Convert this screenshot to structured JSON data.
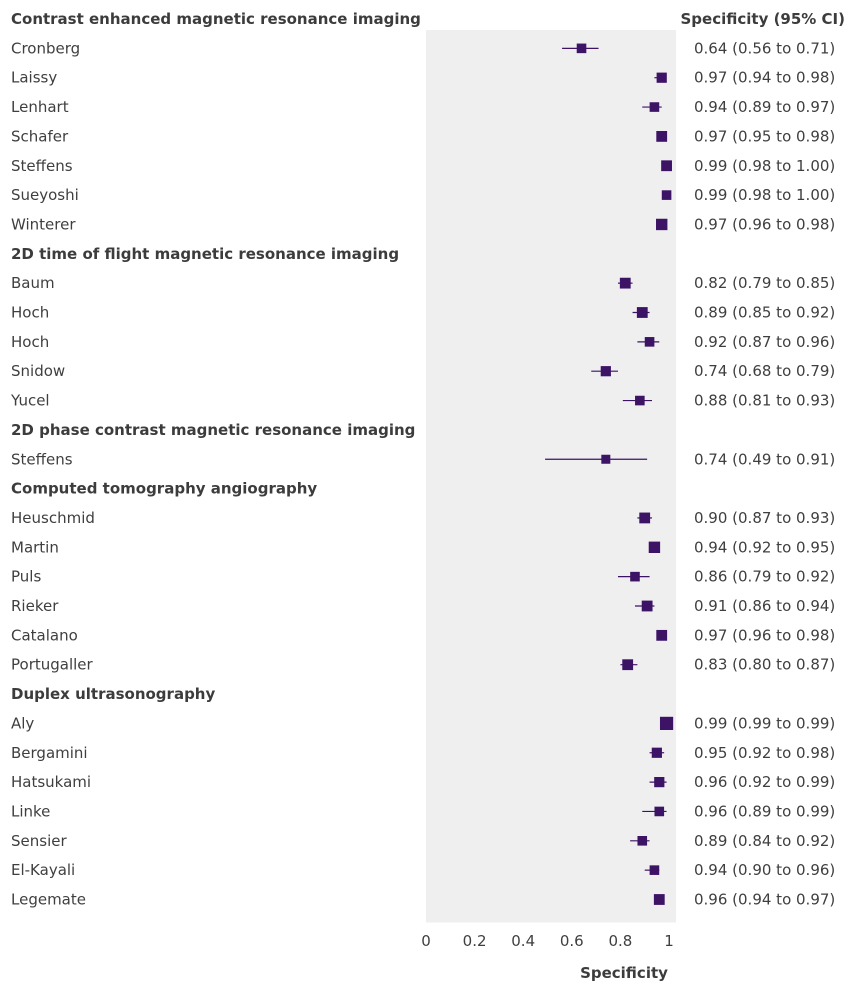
{
  "chart_data": {
    "type": "forest",
    "right_header": "Specificity (95% CI)",
    "xlabel": "Specificity",
    "xlim": [
      0,
      1
    ],
    "xticks": [
      "0",
      "0.2",
      "0.4",
      "0.6",
      "0.8",
      "1"
    ],
    "marker_color": "#3d1366",
    "panel_color": "#efefef",
    "rows": [
      {
        "type": "group",
        "label": "Contrast enhanced magnetic resonance imaging"
      },
      {
        "type": "study",
        "label": "Cronberg",
        "est": 0.64,
        "lo": 0.56,
        "hi": 0.71,
        "ci": "0.64 (0.56 to 0.71)",
        "weight": 0.6
      },
      {
        "type": "study",
        "label": "Laissy",
        "est": 0.97,
        "lo": 0.94,
        "hi": 0.98,
        "ci": "0.97 (0.94 to 0.98)",
        "weight": 0.7
      },
      {
        "type": "study",
        "label": "Lenhart",
        "est": 0.94,
        "lo": 0.89,
        "hi": 0.97,
        "ci": "0.94 (0.89 to 0.97)",
        "weight": 0.6
      },
      {
        "type": "study",
        "label": "Schafer",
        "est": 0.97,
        "lo": 0.95,
        "hi": 0.98,
        "ci": "0.97 (0.95 to 0.98)",
        "weight": 0.8
      },
      {
        "type": "study",
        "label": "Steffens",
        "est": 0.99,
        "lo": 0.98,
        "hi": 1.0,
        "ci": "0.99 (0.98 to 1.00)",
        "weight": 0.8
      },
      {
        "type": "study",
        "label": "Sueyoshi",
        "est": 0.99,
        "lo": 0.98,
        "hi": 1.0,
        "ci": "0.99 (0.98 to 1.00)",
        "weight": 0.6
      },
      {
        "type": "study",
        "label": "Winterer",
        "est": 0.97,
        "lo": 0.96,
        "hi": 0.98,
        "ci": "0.97 (0.96 to 0.98)",
        "weight": 0.9
      },
      {
        "type": "group",
        "label": "2D time of flight magnetic resonance imaging"
      },
      {
        "type": "study",
        "label": "Baum",
        "est": 0.82,
        "lo": 0.79,
        "hi": 0.85,
        "ci": "0.82 (0.79 to 0.85)",
        "weight": 0.8
      },
      {
        "type": "study",
        "label": "Hoch",
        "est": 0.89,
        "lo": 0.85,
        "hi": 0.92,
        "ci": "0.89 (0.85 to 0.92)",
        "weight": 0.8
      },
      {
        "type": "study",
        "label": "Hoch",
        "est": 0.92,
        "lo": 0.87,
        "hi": 0.96,
        "ci": "0.92 (0.87 to 0.96)",
        "weight": 0.6
      },
      {
        "type": "study",
        "label": "Snidow",
        "est": 0.74,
        "lo": 0.68,
        "hi": 0.79,
        "ci": "0.74 (0.68 to 0.79)",
        "weight": 0.7
      },
      {
        "type": "study",
        "label": "Yucel",
        "est": 0.88,
        "lo": 0.81,
        "hi": 0.93,
        "ci": "0.88 (0.81 to 0.93)",
        "weight": 0.6
      },
      {
        "type": "group",
        "label": "2D phase contrast magnetic resonance imaging"
      },
      {
        "type": "study",
        "label": "Steffens",
        "est": 0.74,
        "lo": 0.49,
        "hi": 0.91,
        "ci": "0.74 (0.49 to 0.91)",
        "weight": 0.5
      },
      {
        "type": "group",
        "label": "Computed tomography angiography"
      },
      {
        "type": "study",
        "label": "Heuschmid",
        "est": 0.9,
        "lo": 0.87,
        "hi": 0.93,
        "ci": "0.90 (0.87 to 0.93)",
        "weight": 0.8
      },
      {
        "type": "study",
        "label": "Martin",
        "est": 0.94,
        "lo": 0.92,
        "hi": 0.95,
        "ci": "0.94 (0.92 to 0.95)",
        "weight": 0.9
      },
      {
        "type": "study",
        "label": "Puls",
        "est": 0.86,
        "lo": 0.79,
        "hi": 0.92,
        "ci": "0.86 (0.79 to 0.92)",
        "weight": 0.6
      },
      {
        "type": "study",
        "label": "Rieker",
        "est": 0.91,
        "lo": 0.86,
        "hi": 0.94,
        "ci": "0.91 (0.86 to 0.94)",
        "weight": 0.8
      },
      {
        "type": "study",
        "label": "Catalano",
        "est": 0.97,
        "lo": 0.96,
        "hi": 0.98,
        "ci": "0.97 (0.96 to 0.98)",
        "weight": 0.8
      },
      {
        "type": "study",
        "label": "Portugaller",
        "est": 0.83,
        "lo": 0.8,
        "hi": 0.87,
        "ci": "0.83 (0.80 to 0.87)",
        "weight": 0.8
      },
      {
        "type": "group",
        "label": "Duplex ultrasonography"
      },
      {
        "type": "study",
        "label": "Aly",
        "est": 0.99,
        "lo": 0.99,
        "hi": 0.99,
        "ci": "0.99 (0.99 to 0.99)",
        "weight": 1.2
      },
      {
        "type": "study",
        "label": "Bergamini",
        "est": 0.95,
        "lo": 0.92,
        "hi": 0.98,
        "ci": "0.95 (0.92 to 0.98)",
        "weight": 0.7
      },
      {
        "type": "study",
        "label": "Hatsukami",
        "est": 0.96,
        "lo": 0.92,
        "hi": 0.99,
        "ci": "0.96 (0.92 to 0.99)",
        "weight": 0.7
      },
      {
        "type": "study",
        "label": "Linke",
        "est": 0.96,
        "lo": 0.89,
        "hi": 0.99,
        "ci": "0.96 (0.89 to 0.99)",
        "weight": 0.6
      },
      {
        "type": "study",
        "label": "Sensier",
        "est": 0.89,
        "lo": 0.84,
        "hi": 0.92,
        "ci": "0.89 (0.84 to 0.92)",
        "weight": 0.6
      },
      {
        "type": "study",
        "label": "El-Kayali",
        "est": 0.94,
        "lo": 0.9,
        "hi": 0.96,
        "ci": "0.94 (0.90 to 0.96)",
        "weight": 0.6
      },
      {
        "type": "study",
        "label": "Legemate",
        "est": 0.96,
        "lo": 0.94,
        "hi": 0.97,
        "ci": "0.96 (0.94 to 0.97)",
        "weight": 0.8
      }
    ]
  }
}
